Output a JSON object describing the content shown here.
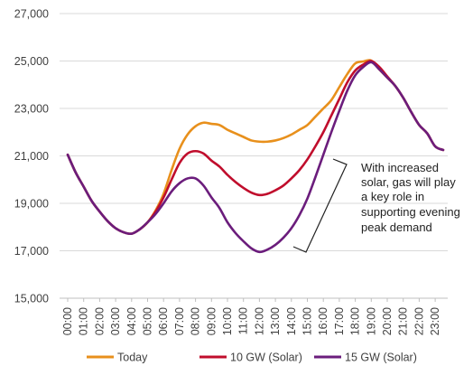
{
  "chart_data": {
    "type": "line",
    "title": "",
    "xlabel": "",
    "ylabel": "",
    "ylim": [
      15000,
      27000
    ],
    "yticks": [
      15000,
      17000,
      19000,
      21000,
      23000,
      25000,
      27000
    ],
    "ytick_labels": [
      "15,000",
      "17,000",
      "19,000",
      "21,000",
      "23,000",
      "25,000",
      "27,000"
    ],
    "x": [
      "00:00",
      "00:30",
      "01:00",
      "01:30",
      "02:00",
      "02:30",
      "03:00",
      "03:30",
      "04:00",
      "04:30",
      "05:00",
      "05:30",
      "06:00",
      "06:30",
      "07:00",
      "07:30",
      "08:00",
      "08:30",
      "09:00",
      "09:30",
      "10:00",
      "10:30",
      "11:00",
      "11:30",
      "12:00",
      "12:30",
      "13:00",
      "13:30",
      "14:00",
      "14:30",
      "15:00",
      "15:30",
      "16:00",
      "16:30",
      "17:00",
      "17:30",
      "18:00",
      "18:30",
      "19:00",
      "19:30",
      "20:00",
      "20:30",
      "21:00",
      "21:30",
      "22:00",
      "22:30",
      "23:00",
      "23:30"
    ],
    "xtick_labels": [
      "00:00",
      "01:00",
      "02:00",
      "03:00",
      "04:00",
      "05:00",
      "06:00",
      "07:00",
      "08:00",
      "09:00",
      "10:00",
      "11:00",
      "12:00",
      "13:00",
      "14:00",
      "15:00",
      "16:00",
      "17:00",
      "18:00",
      "19:00",
      "20:00",
      "21:00",
      "22:00",
      "23:00"
    ],
    "grid": "horizontal",
    "legend": "bottom",
    "series": [
      {
        "name": "Today",
        "color": "#E8901C",
        "values": [
          21050,
          20300,
          19700,
          19100,
          18650,
          18250,
          17950,
          17780,
          17720,
          17900,
          18200,
          18700,
          19400,
          20400,
          21300,
          21900,
          22250,
          22400,
          22350,
          22300,
          22100,
          21950,
          21800,
          21650,
          21600,
          21600,
          21650,
          21750,
          21900,
          22100,
          22300,
          22650,
          23000,
          23350,
          23900,
          24450,
          24900,
          24980,
          25020,
          24650,
          24300,
          23950,
          23450,
          22850,
          22300,
          21950,
          21400,
          21250
        ]
      },
      {
        "name": "10 GW (Solar)",
        "color": "#C00D2C",
        "values": [
          21050,
          20300,
          19700,
          19100,
          18650,
          18250,
          17950,
          17780,
          17720,
          17900,
          18200,
          18650,
          19250,
          20000,
          20700,
          21100,
          21200,
          21100,
          20800,
          20550,
          20200,
          19900,
          19650,
          19450,
          19350,
          19400,
          19550,
          19750,
          20050,
          20400,
          20850,
          21400,
          22000,
          22700,
          23400,
          24100,
          24600,
          24850,
          25000,
          24750,
          24350,
          23950,
          23450,
          22850,
          22300,
          21950,
          21400,
          21250
        ]
      },
      {
        "name": "15 GW (Solar)",
        "color": "#6B1D7C",
        "values": [
          21050,
          20300,
          19700,
          19100,
          18650,
          18250,
          17950,
          17780,
          17720,
          17900,
          18200,
          18550,
          19000,
          19500,
          19850,
          20050,
          20050,
          19750,
          19250,
          18800,
          18200,
          17750,
          17400,
          17100,
          16950,
          17050,
          17250,
          17550,
          17950,
          18500,
          19200,
          20100,
          21050,
          22000,
          22900,
          23750,
          24400,
          24750,
          24950,
          24650,
          24300,
          23950,
          23450,
          22850,
          22300,
          21950,
          21400,
          21250
        ]
      }
    ],
    "annotation": {
      "lines": [
        "With increased",
        "solar, gas will play",
        "a key role in",
        "supporting evening",
        "peak demand"
      ]
    }
  }
}
